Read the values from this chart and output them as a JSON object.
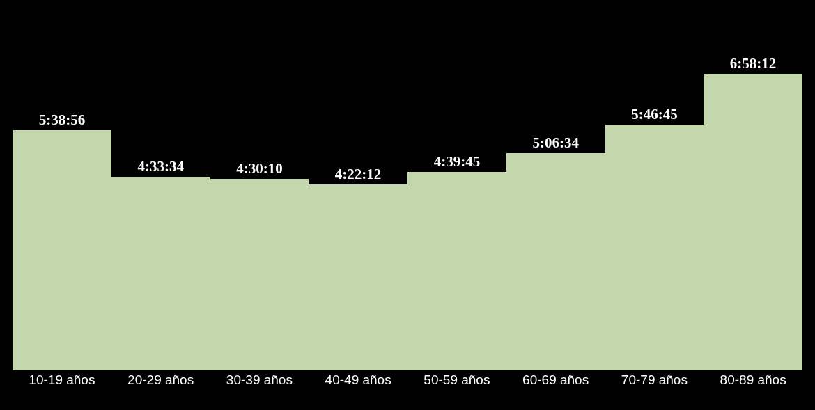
{
  "chart_data": {
    "type": "bar",
    "categories": [
      "10-19 años",
      "20-29 años",
      "30-39 años",
      "40-49 años",
      "50-59 años",
      "60-69 años",
      "70-79 años",
      "80-89 años"
    ],
    "values": [
      5.6489,
      4.5594,
      4.5028,
      4.37,
      4.6625,
      5.1094,
      5.7792,
      6.97
    ],
    "value_labels": [
      "5:38:56",
      "4:33:34",
      "4:30:10",
      "4:22:12",
      "4:39:45",
      "5:06:34",
      "5:46:45",
      "6:58:12"
    ],
    "color": "#c4d6ab",
    "grid": false
  }
}
